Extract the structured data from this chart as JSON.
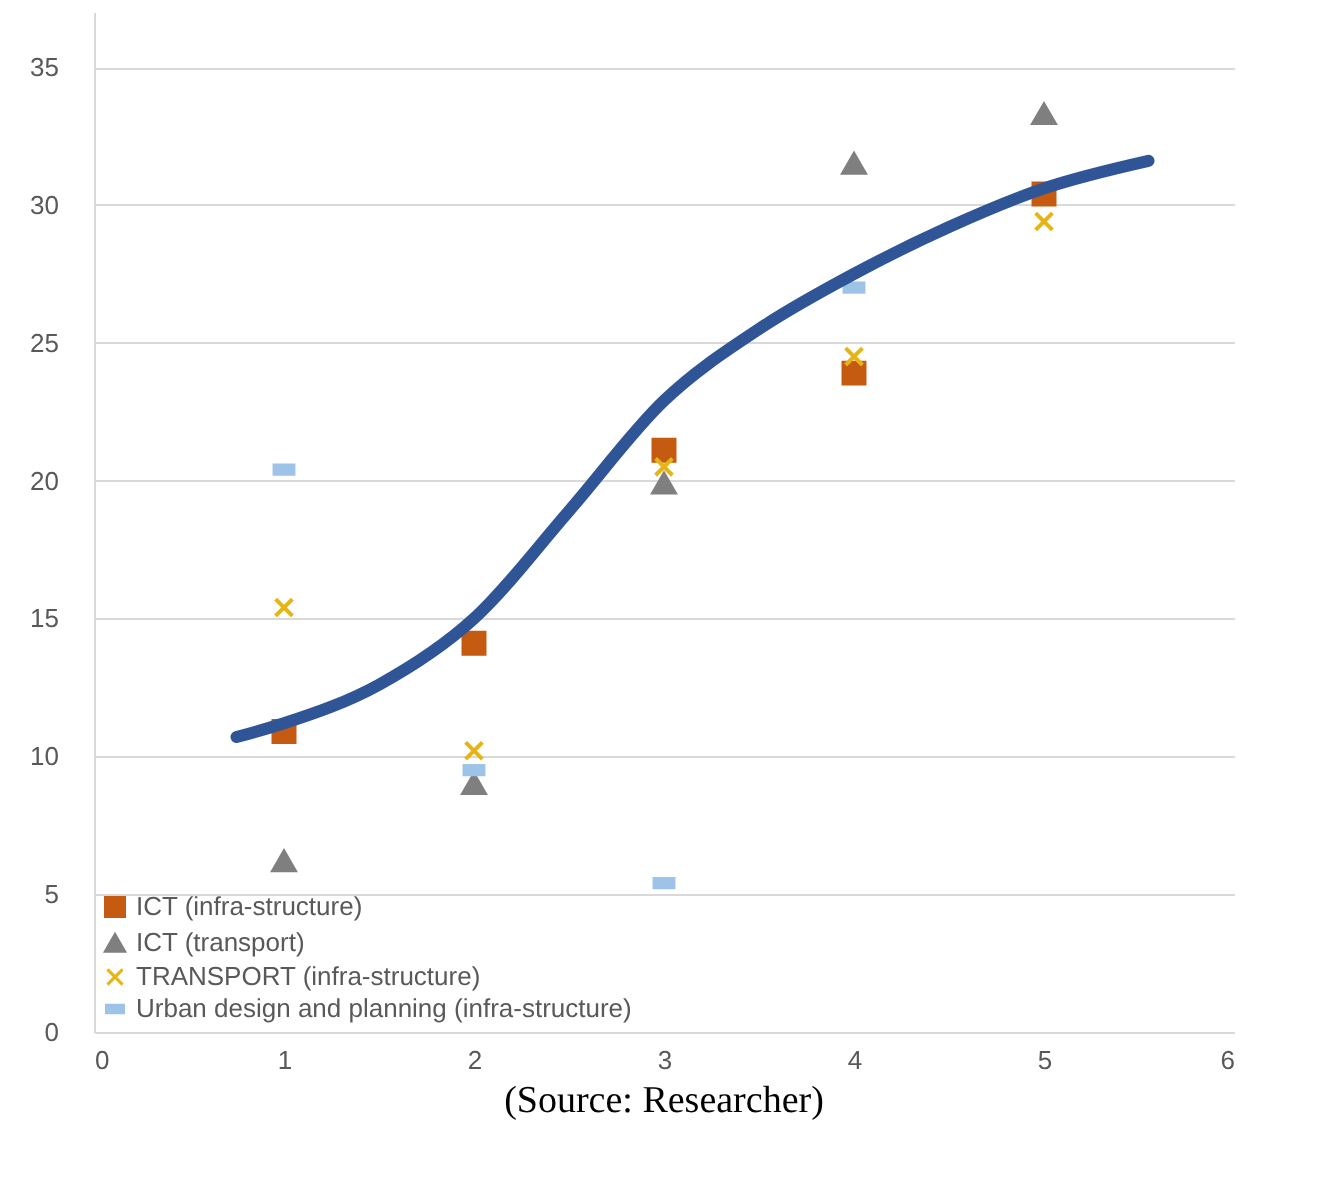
{
  "chart_data": {
    "type": "scatter",
    "annotations": [
      "(Source: Researcher)"
    ],
    "x": [
      1,
      2,
      3,
      4,
      5
    ],
    "xlim": [
      0,
      6
    ],
    "xticks": [
      0,
      1,
      2,
      3,
      4,
      5,
      6
    ],
    "ylim": [
      0,
      37
    ],
    "yticks": [
      0,
      5,
      10,
      15,
      20,
      25,
      30,
      35
    ],
    "grid": "y",
    "legend": "bottom left",
    "series": [
      {
        "name": "ICT (infra-structure)",
        "color": "#c55a11",
        "marker": "square",
        "values": [
          10.9,
          14.1,
          21.1,
          23.9,
          30.4
        ]
      },
      {
        "name": "ICT (transport)",
        "color": "#7f7f7f",
        "marker": "triangle",
        "values": [
          6.2,
          9.0,
          19.9,
          31.5,
          33.3
        ]
      },
      {
        "name": "TRANSPORT (infra-structure)",
        "color": "#e7b416",
        "marker": "cross",
        "values": [
          15.4,
          10.2,
          20.5,
          24.5,
          29.4
        ]
      },
      {
        "name": "Urban design and planning (infra-structure)",
        "color": "#9dc3e6",
        "values": [
          20.4,
          9.5,
          5.4,
          27.0,
          null
        ]
      },
      {
        "type": "line",
        "color": "#2f5597",
        "x": [
          0.75,
          1,
          1.5,
          2,
          2.5,
          3,
          3.5,
          4,
          4.5,
          5,
          5.55
        ],
        "values": [
          10.7,
          11.2,
          12.6,
          15.0,
          18.9,
          22.9,
          25.5,
          27.5,
          29.2,
          30.6,
          31.6
        ]
      }
    ]
  }
}
